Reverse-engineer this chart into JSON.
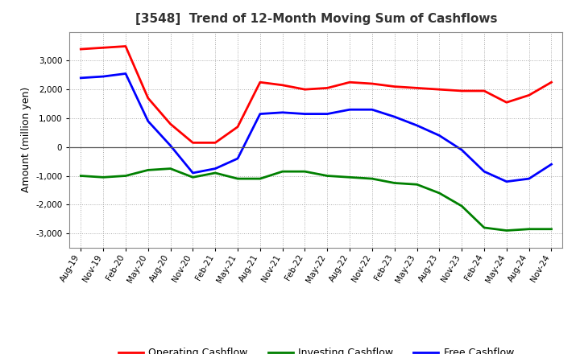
{
  "title": "[3548]  Trend of 12-Month Moving Sum of Cashflows",
  "ylabel": "Amount (million yen)",
  "ylim": [
    -3500,
    4000
  ],
  "yticks": [
    -3000,
    -2000,
    -1000,
    0,
    1000,
    2000,
    3000
  ],
  "x_labels": [
    "Aug-19",
    "Nov-19",
    "Feb-20",
    "May-20",
    "Aug-20",
    "Nov-20",
    "Feb-21",
    "May-21",
    "Aug-21",
    "Nov-21",
    "Feb-22",
    "May-22",
    "Aug-22",
    "Nov-22",
    "Feb-23",
    "May-23",
    "Aug-23",
    "Nov-23",
    "Feb-24",
    "May-24",
    "Aug-24",
    "Nov-24"
  ],
  "operating": [
    3400,
    3450,
    3500,
    1700,
    800,
    150,
    150,
    700,
    2250,
    2150,
    2000,
    2050,
    2250,
    2200,
    2100,
    2050,
    2000,
    1950,
    1950,
    1550,
    1800,
    2250
  ],
  "investing": [
    -1000,
    -1050,
    -1000,
    -800,
    -750,
    -1050,
    -900,
    -1100,
    -1100,
    -850,
    -850,
    -1000,
    -1050,
    -1100,
    -1250,
    -1300,
    -1600,
    -2050,
    -2800,
    -2900,
    -2850,
    -2850
  ],
  "free": [
    2400,
    2450,
    2550,
    900,
    50,
    -900,
    -750,
    -400,
    1150,
    1200,
    1150,
    1150,
    1300,
    1300,
    1050,
    750,
    400,
    -100,
    -850,
    -1200,
    -1100,
    -600
  ],
  "op_color": "#ff0000",
  "inv_color": "#008000",
  "free_color": "#0000ff",
  "line_width": 2.0,
  "legend_labels": [
    "Operating Cashflow",
    "Investing Cashflow",
    "Free Cashflow"
  ],
  "background_color": "#ffffff",
  "grid_color": "#aaaaaa"
}
